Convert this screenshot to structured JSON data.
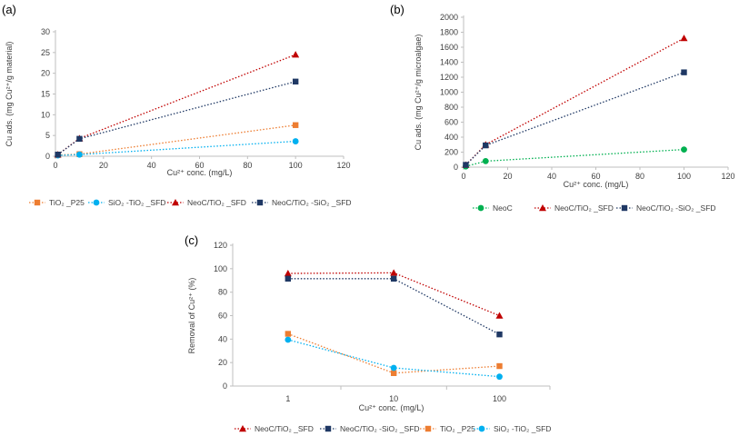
{
  "panel_labels": [
    "(a)",
    "(b)",
    "(c)"
  ],
  "chart_data": [
    {
      "type": "line",
      "label": "(a)",
      "xlabel": "Cu²⁺ conc. (mg/L)",
      "ylabel": "Cu ads. (mg Cu²⁺/g material)",
      "xlim": [
        0,
        120
      ],
      "ylim": [
        0,
        30
      ],
      "xticks": [
        0,
        20,
        40,
        60,
        80,
        100,
        120
      ],
      "yticks": [
        0,
        5,
        10,
        15,
        20,
        25,
        30
      ],
      "x_scale": "linear",
      "legend_position": "bottom",
      "series": [
        {
          "name": "TiO₂ _P25",
          "color": "#ed7d31",
          "marker": "square",
          "x": [
            1,
            10,
            100
          ],
          "y": [
            0.3,
            0.5,
            7.5
          ]
        },
        {
          "name": "SiO₂ -TiO₂ _SFD",
          "color": "#00b0f0",
          "marker": "circle",
          "x": [
            1,
            10,
            100
          ],
          "y": [
            0.2,
            0.4,
            3.6
          ]
        },
        {
          "name": "NeoC/TiO₂ _SFD",
          "color": "#c00000",
          "marker": "triangle",
          "x": [
            1,
            10,
            100
          ],
          "y": [
            0.4,
            4.3,
            24.5
          ]
        },
        {
          "name": "NeoC/TiO₂ -SiO₂ _SFD",
          "color": "#1f3864",
          "marker": "square",
          "x": [
            1,
            10,
            100
          ],
          "y": [
            0.4,
            4.2,
            18.0
          ]
        }
      ]
    },
    {
      "type": "line",
      "label": "(b)",
      "xlabel": "Cu²⁺ conc. (mg/L)",
      "ylabel": "Cu ads. (mg Cu²⁺/g microalgae)",
      "xlim": [
        0,
        120
      ],
      "ylim": [
        0,
        2000
      ],
      "xticks": [
        0,
        20,
        40,
        60,
        80,
        100,
        120
      ],
      "yticks": [
        0,
        200,
        400,
        600,
        800,
        1000,
        1200,
        1400,
        1600,
        1800,
        2000
      ],
      "x_scale": "linear",
      "legend_position": "bottom",
      "series": [
        {
          "name": "NeoC",
          "color": "#00b050",
          "marker": "circle",
          "x": [
            1,
            10,
            100
          ],
          "y": [
            10,
            80,
            235
          ]
        },
        {
          "name": "NeoC/TiO₂ _SFD",
          "color": "#c00000",
          "marker": "triangle",
          "x": [
            1,
            10,
            100
          ],
          "y": [
            30,
            300,
            1720
          ]
        },
        {
          "name": "NeoC/TiO₂ -SiO₂ _SFD",
          "color": "#1f3864",
          "marker": "square",
          "x": [
            1,
            10,
            100
          ],
          "y": [
            30,
            290,
            1265
          ]
        }
      ]
    },
    {
      "type": "line",
      "label": "(c)",
      "xlabel": "Cu²⁺ conc. (mg/L)",
      "ylabel": "Removal of Cu²⁺ (%)",
      "x_scale": "log",
      "xlim": [
        0.3,
        300
      ],
      "ylim": [
        0,
        120
      ],
      "xticks": [
        1,
        10,
        100
      ],
      "yticks": [
        0,
        20,
        40,
        60,
        80,
        100,
        120
      ],
      "legend_position": "bottom",
      "series": [
        {
          "name": "NeoC/TiO₂ _SFD",
          "color": "#c00000",
          "marker": "triangle",
          "x": [
            1,
            10,
            100
          ],
          "y": [
            96,
            96.5,
            60
          ]
        },
        {
          "name": "NeoC/TiO₂ -SiO₂ _SFD",
          "color": "#1f3864",
          "marker": "square",
          "x": [
            1,
            10,
            100
          ],
          "y": [
            91.5,
            91.5,
            44
          ]
        },
        {
          "name": "TiO₂ _P25",
          "color": "#ed7d31",
          "marker": "square",
          "x": [
            1,
            10,
            100
          ],
          "y": [
            44.5,
            11,
            17
          ]
        },
        {
          "name": "SiO₂ -TiO₂ _SFD",
          "color": "#00b0f0",
          "marker": "circle",
          "x": [
            1,
            10,
            100
          ],
          "y": [
            39.5,
            15.5,
            8
          ]
        }
      ]
    }
  ]
}
